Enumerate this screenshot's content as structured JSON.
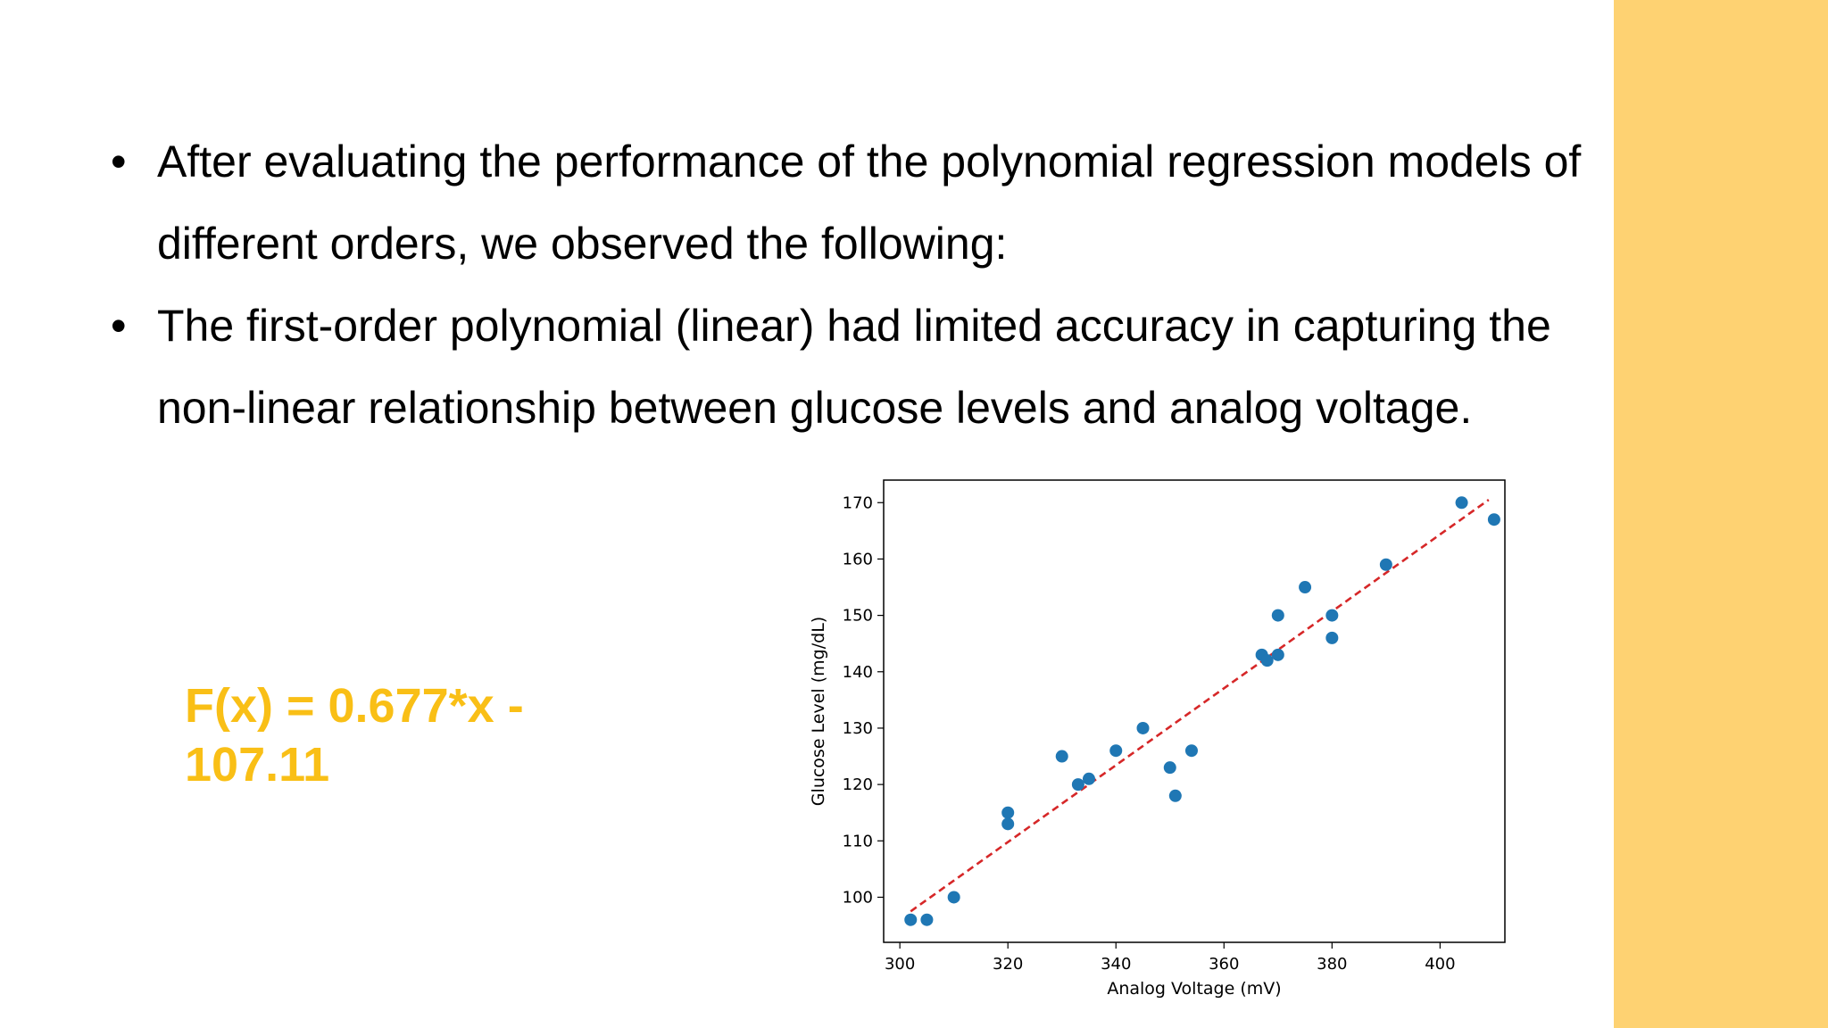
{
  "slide": {
    "bullets": [
      "After evaluating the performance of the polynomial regression models of different orders, we observed the following:",
      "The first-order polynomial (linear) had limited accuracy in capturing the non-linear relationship between glucose levels and analog voltage."
    ],
    "formula": "F(x) = 0.677*x - 107.11",
    "accent_color": "#f9bf16",
    "band_color": "#fed272"
  },
  "chart_data": {
    "type": "scatter",
    "title": "",
    "xlabel": "Analog Voltage (mV)",
    "ylabel": "Glucose Level (mg/dL)",
    "xlim": [
      297,
      412
    ],
    "ylim": [
      92,
      174
    ],
    "xticks": [
      300,
      320,
      340,
      360,
      380,
      400
    ],
    "yticks": [
      100,
      110,
      120,
      130,
      140,
      150,
      160,
      170
    ],
    "grid": false,
    "points": [
      {
        "x": 302,
        "y": 96
      },
      {
        "x": 305,
        "y": 96
      },
      {
        "x": 310,
        "y": 100
      },
      {
        "x": 320,
        "y": 115
      },
      {
        "x": 320,
        "y": 113
      },
      {
        "x": 330,
        "y": 125
      },
      {
        "x": 333,
        "y": 120
      },
      {
        "x": 335,
        "y": 121
      },
      {
        "x": 340,
        "y": 126
      },
      {
        "x": 345,
        "y": 130
      },
      {
        "x": 350,
        "y": 123
      },
      {
        "x": 351,
        "y": 118
      },
      {
        "x": 354,
        "y": 126
      },
      {
        "x": 367,
        "y": 143
      },
      {
        "x": 368,
        "y": 142
      },
      {
        "x": 370,
        "y": 150
      },
      {
        "x": 370,
        "y": 143
      },
      {
        "x": 375,
        "y": 155
      },
      {
        "x": 380,
        "y": 150
      },
      {
        "x": 380,
        "y": 146
      },
      {
        "x": 390,
        "y": 159
      },
      {
        "x": 404,
        "y": 170
      },
      {
        "x": 410,
        "y": 167
      }
    ],
    "fit_line": {
      "x": [
        302,
        409
      ],
      "y": [
        97.5,
        170.5
      ],
      "style": "dashed",
      "color": "#d62728"
    },
    "point_color": "#1f77b4"
  }
}
